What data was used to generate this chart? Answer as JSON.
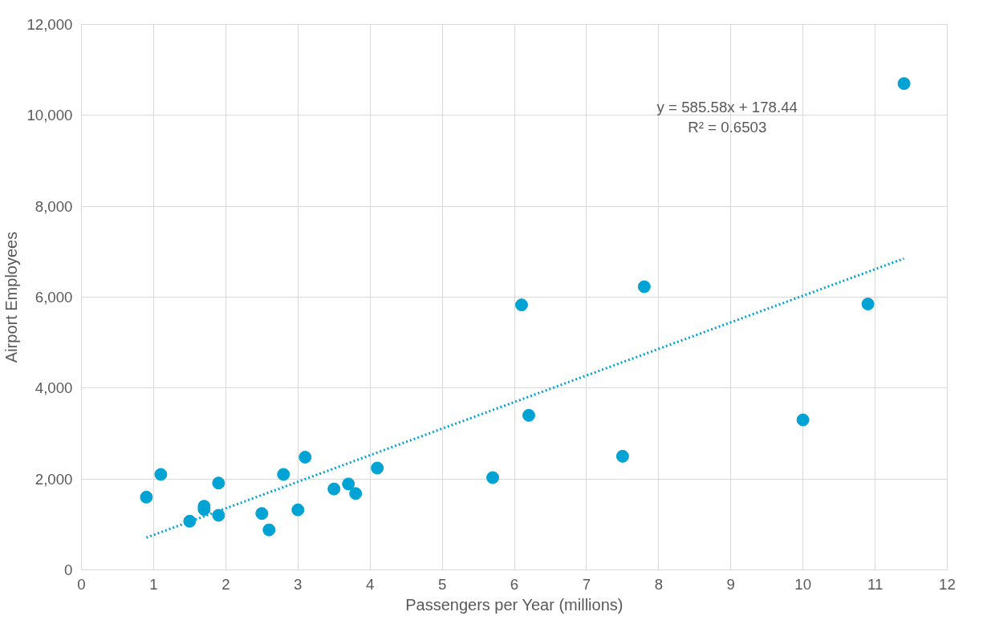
{
  "chart_data": {
    "type": "scatter",
    "xlabel": "Passengers per Year (millions)",
    "ylabel": "Airport Employees",
    "xlim": [
      0,
      12
    ],
    "xticks": [
      0,
      1,
      2,
      3,
      4,
      5,
      6,
      7,
      8,
      9,
      10,
      11,
      12
    ],
    "ylim": [
      0,
      12000
    ],
    "yticks": [
      {
        "value": 0,
        "label": "0"
      },
      {
        "value": 2000,
        "label": "2,000"
      },
      {
        "value": 4000,
        "label": "4,000"
      },
      {
        "value": 6000,
        "label": "6,000"
      },
      {
        "value": 8000,
        "label": "8,000"
      },
      {
        "value": 10000,
        "label": "10,000"
      },
      {
        "value": 12000,
        "label": "12,000"
      }
    ],
    "grid": true,
    "marker": "circle",
    "annotations": [
      "y = 585.58x + 178.44",
      "R² = 0.6503"
    ],
    "series": [
      {
        "color": "#00a3d3",
        "x": [
          0.9,
          1.1,
          1.5,
          1.7,
          1.7,
          1.9,
          1.9,
          2.5,
          2.6,
          2.8,
          3.0,
          3.1,
          3.5,
          3.7,
          3.8,
          4.1,
          5.7,
          6.1,
          6.2,
          7.5,
          7.8,
          10.0,
          10.9,
          11.4
        ],
        "values": [
          1600,
          2100,
          1070,
          1330,
          1400,
          1910,
          1200,
          1240,
          880,
          2100,
          1320,
          2480,
          1780,
          1890,
          1680,
          2240,
          2030,
          5830,
          3400,
          2500,
          6230,
          3300,
          5850,
          10700
        ]
      },
      {
        "type": "line",
        "color": "#00a3d3",
        "line_style": "dotted",
        "marker": "none",
        "x": [
          0.9,
          11.4
        ],
        "values": [
          710,
          6850
        ]
      }
    ]
  }
}
